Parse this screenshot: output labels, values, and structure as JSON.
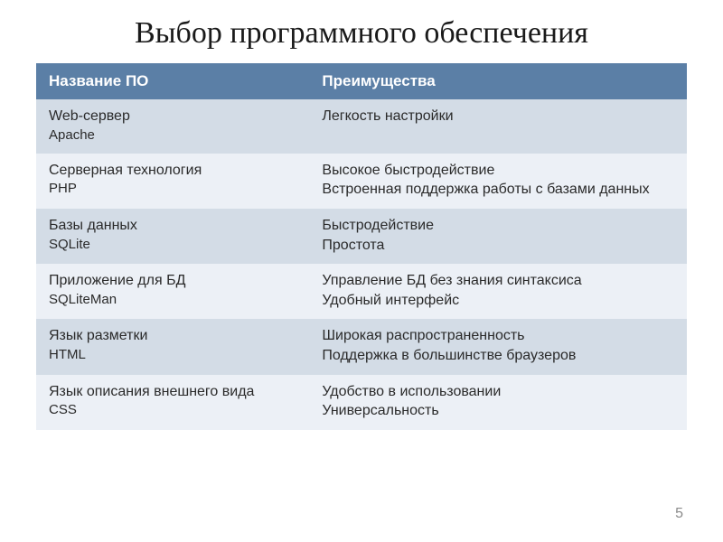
{
  "title": "Выбор программного обеспечения",
  "page_number": "5",
  "table": {
    "header_bg": "#5b7fa6",
    "header_fg": "#ffffff",
    "row_alt_bg": "#d3dce6",
    "row_bg": "#ecf0f6",
    "col1_width_pct": 42,
    "col2_width_pct": 58,
    "columns": [
      "Название ПО",
      "Преимущества"
    ],
    "rows": [
      {
        "name_primary": "Web-сервер",
        "name_secondary": "Apache",
        "advantages": [
          "Легкость настройки"
        ]
      },
      {
        "name_primary": "Серверная технология",
        "name_secondary": "PHP",
        "advantages": [
          "Высокое быстродействие",
          "Встроенная поддержка работы с базами данных"
        ]
      },
      {
        "name_primary": "Базы данных",
        "name_secondary": "SQLite",
        "advantages": [
          "Быстродействие",
          "Простота"
        ]
      },
      {
        "name_primary": "Приложение для БД",
        "name_secondary": "SQLiteMan",
        "advantages": [
          "Управление БД без знания синтаксиса",
          "Удобный интерфейс"
        ]
      },
      {
        "name_primary": "Язык разметки",
        "name_secondary": "HTML",
        "advantages": [
          "Широкая распространенность",
          "Поддержка в большинстве браузеров"
        ]
      },
      {
        "name_primary": "Язык описания внешнего вида",
        "name_secondary": "CSS",
        "advantages": [
          "Удобство в использовании",
          "Универсальность"
        ]
      }
    ]
  }
}
